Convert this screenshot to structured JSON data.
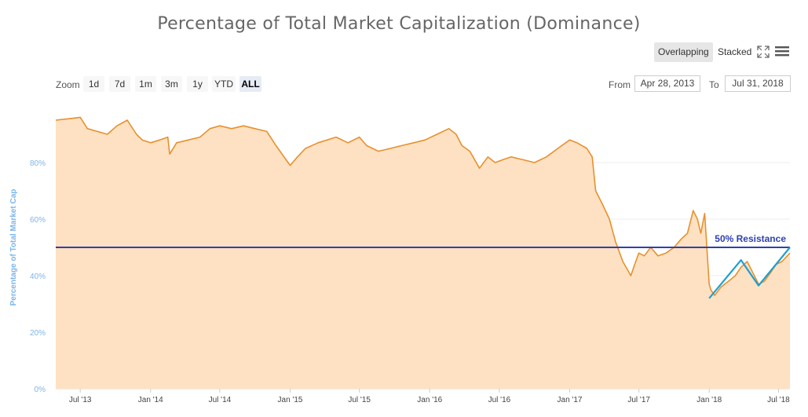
{
  "header": {
    "title": "Percentage of Total Market Capitalization (Dominance)"
  },
  "toolbar": {
    "overlapping_label": "Overlapping",
    "stacked_label": "Stacked",
    "fullscreen_icon": "expand-icon",
    "menu_icon": "hamburger-menu-icon"
  },
  "zoom": {
    "label": "Zoom",
    "buttons": [
      "1d",
      "7d",
      "1m",
      "3m",
      "1y",
      "YTD",
      "ALL"
    ],
    "active": "ALL"
  },
  "range": {
    "from_label": "From",
    "from_value": "Apr 28, 2013",
    "to_label": "To",
    "to_value": "Jul 31, 2018"
  },
  "colors": {
    "series_line": "#e8902e",
    "series_fill": "#fde1c2",
    "resistance_line": "#2f3fb0",
    "trend_line": "#1e9fd0",
    "axis_title": "#7cb5ec"
  },
  "chart_data": {
    "type": "area",
    "title": "Percentage of Total Market Capitalization (Dominance)",
    "ylabel": "Percentage of Total Market Cap",
    "ylim": [
      0,
      100
    ],
    "yticks": [
      "0%",
      "20%",
      "40%",
      "60%",
      "80%"
    ],
    "xlim": [
      "2013-04-28",
      "2018-07-31"
    ],
    "xticks": [
      {
        "date": "2013-07-01",
        "label": "Jul '13"
      },
      {
        "date": "2014-01-01",
        "label": "Jan '14"
      },
      {
        "date": "2014-07-01",
        "label": "Jul '14"
      },
      {
        "date": "2015-01-01",
        "label": "Jan '15"
      },
      {
        "date": "2015-07-01",
        "label": "Jul '15"
      },
      {
        "date": "2016-01-01",
        "label": "Jan '16"
      },
      {
        "date": "2016-07-01",
        "label": "Jul '16"
      },
      {
        "date": "2017-01-01",
        "label": "Jan '17"
      },
      {
        "date": "2017-07-01",
        "label": "Jul '17"
      },
      {
        "date": "2018-01-01",
        "label": "Jan '18"
      },
      {
        "date": "2018-07-01",
        "label": "Jul '18"
      }
    ],
    "series": [
      {
        "x": [
          "2013-04-28",
          "2013-06-01",
          "2013-07-01",
          "2013-07-20",
          "2013-08-15",
          "2013-09-10",
          "2013-10-05",
          "2013-11-01",
          "2013-11-25",
          "2013-12-10",
          "2014-01-01",
          "2014-01-25",
          "2014-02-15",
          "2014-02-20",
          "2014-03-10",
          "2014-04-10",
          "2014-05-10",
          "2014-06-05",
          "2014-07-01",
          "2014-08-01",
          "2014-09-01",
          "2014-10-01",
          "2014-11-01",
          "2014-11-25",
          "2015-01-01",
          "2015-01-20",
          "2015-02-10",
          "2015-03-15",
          "2015-05-01",
          "2015-06-01",
          "2015-07-01",
          "2015-07-20",
          "2015-08-20",
          "2015-09-20",
          "2015-10-20",
          "2015-11-20",
          "2015-12-20",
          "2016-01-20",
          "2016-02-20",
          "2016-03-10",
          "2016-03-25",
          "2016-04-15",
          "2016-05-10",
          "2016-06-01",
          "2016-06-20",
          "2016-07-10",
          "2016-08-01",
          "2016-09-01",
          "2016-10-01",
          "2016-11-01",
          "2016-12-01",
          "2017-01-01",
          "2017-01-20",
          "2017-02-15",
          "2017-03-01",
          "2017-03-10",
          "2017-03-25",
          "2017-04-15",
          "2017-05-01",
          "2017-05-20",
          "2017-06-10",
          "2017-06-20",
          "2017-07-01",
          "2017-07-15",
          "2017-08-01",
          "2017-08-20",
          "2017-09-10",
          "2017-10-01",
          "2017-10-20",
          "2017-11-05",
          "2017-11-20",
          "2017-12-01",
          "2017-12-10",
          "2017-12-20",
          "2018-01-01",
          "2018-01-05",
          "2018-01-15",
          "2018-02-01",
          "2018-02-20",
          "2018-03-10",
          "2018-03-25",
          "2018-04-10",
          "2018-04-25",
          "2018-05-10",
          "2018-05-25",
          "2018-06-10",
          "2018-06-25",
          "2018-07-10",
          "2018-07-31"
        ],
        "y": [
          95,
          95.5,
          96,
          92,
          91,
          90,
          93,
          95,
          90,
          88,
          87,
          88,
          89,
          83,
          87,
          88,
          89,
          92,
          93,
          92,
          93,
          92,
          91,
          86,
          79,
          82,
          85,
          87,
          89,
          87,
          89,
          86,
          84,
          85,
          86,
          87,
          88,
          90,
          92,
          90,
          86,
          84,
          78,
          82,
          80,
          81,
          82,
          81,
          80,
          82,
          85,
          88,
          87,
          85,
          82,
          70,
          66,
          60,
          52,
          45,
          40,
          44,
          48,
          47,
          50,
          47,
          48,
          50,
          53,
          55,
          63,
          60,
          55,
          62,
          37,
          35,
          33,
          36,
          38,
          40,
          43,
          45,
          41,
          37,
          38,
          41,
          44,
          45,
          48
        ]
      }
    ],
    "annotations": [
      {
        "type": "horizontal-line",
        "y": 50,
        "label": "50% Resistance"
      },
      {
        "type": "trendline",
        "points": [
          {
            "x": "2018-01-01",
            "y": 32
          },
          {
            "x": "2018-03-25",
            "y": 45.5
          },
          {
            "x": "2018-05-10",
            "y": 36.5
          },
          {
            "x": "2018-07-31",
            "y": 50
          }
        ]
      }
    ]
  }
}
